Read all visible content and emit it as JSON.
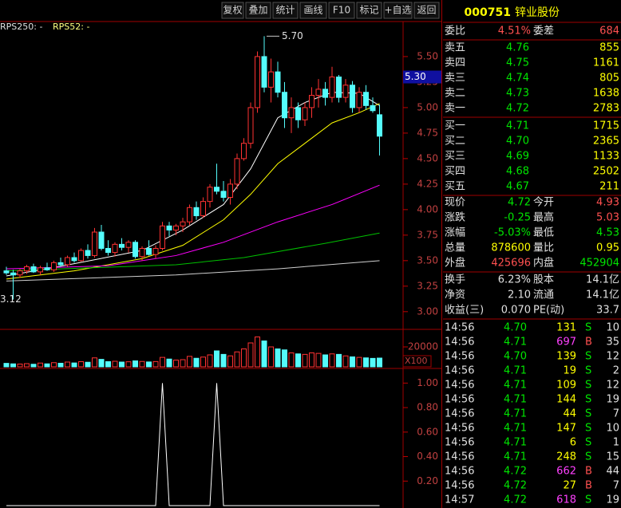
{
  "toolbar": [
    "复权",
    "叠加",
    "统计",
    "画线",
    "F10",
    "标记",
    "+自选",
    "返回"
  ],
  "chart": {
    "legend": [
      "RPS250: -",
      "RPS52: -"
    ],
    "up_color": "#ff3232",
    "down_color": "#54fcfc",
    "ylim": [
      2.85,
      5.82
    ],
    "yticks": [
      {
        "value": 5.5,
        "label": "5.50"
      },
      {
        "value": 5.25,
        "label": "5.25"
      },
      {
        "value": 5,
        "label": "5.00"
      },
      {
        "value": 4.75,
        "label": "4.75"
      },
      {
        "value": 4.5,
        "label": "4.50"
      },
      {
        "value": 4.25,
        "label": "4.25"
      },
      {
        "value": 4,
        "label": "4.00"
      },
      {
        "value": 3.75,
        "label": "3.75"
      },
      {
        "value": 3.5,
        "label": "3.50"
      },
      {
        "value": 3.25,
        "label": "3.25"
      },
      {
        "value": 3,
        "label": "3.00"
      }
    ],
    "high_label": {
      "value": 5.7,
      "label": "5.70"
    },
    "low_label": {
      "value": 3.12,
      "label": "3.12"
    },
    "price_tag": {
      "value": 5.3,
      "label": "5.30"
    },
    "candles": [
      [
        3.4,
        3.44,
        3.36,
        3.38
      ],
      [
        3.38,
        3.41,
        3.12,
        3.36
      ],
      [
        3.36,
        3.42,
        3.33,
        3.4
      ],
      [
        3.4,
        3.46,
        3.37,
        3.44
      ],
      [
        3.44,
        3.47,
        3.38,
        3.39
      ],
      [
        3.39,
        3.45,
        3.36,
        3.43
      ],
      [
        3.43,
        3.48,
        3.4,
        3.41
      ],
      [
        3.41,
        3.5,
        3.39,
        3.48
      ],
      [
        3.48,
        3.53,
        3.44,
        3.46
      ],
      [
        3.46,
        3.55,
        3.44,
        3.53
      ],
      [
        3.53,
        3.58,
        3.48,
        3.5
      ],
      [
        3.5,
        3.62,
        3.49,
        3.6
      ],
      [
        3.6,
        3.66,
        3.52,
        3.55
      ],
      [
        3.55,
        3.82,
        3.53,
        3.78
      ],
      [
        3.78,
        3.85,
        3.6,
        3.62
      ],
      [
        3.62,
        3.7,
        3.55,
        3.58
      ],
      [
        3.58,
        3.68,
        3.54,
        3.66
      ],
      [
        3.66,
        3.72,
        3.6,
        3.63
      ],
      [
        3.63,
        3.7,
        3.58,
        3.68
      ],
      [
        3.68,
        3.7,
        3.52,
        3.54
      ],
      [
        3.54,
        3.64,
        3.5,
        3.62
      ],
      [
        3.62,
        3.7,
        3.55,
        3.56
      ],
      [
        3.56,
        3.65,
        3.52,
        3.62
      ],
      [
        3.62,
        3.88,
        3.6,
        3.84
      ],
      [
        3.84,
        3.88,
        3.74,
        3.8
      ],
      [
        3.8,
        3.86,
        3.75,
        3.84
      ],
      [
        3.84,
        3.92,
        3.78,
        3.88
      ],
      [
        3.88,
        4.05,
        3.85,
        4.02
      ],
      [
        4.02,
        4.08,
        3.9,
        3.94
      ],
      [
        3.94,
        4.12,
        3.92,
        4.08
      ],
      [
        4.08,
        4.25,
        4.02,
        4.22
      ],
      [
        4.22,
        4.45,
        4.15,
        4.18
      ],
      [
        4.18,
        4.28,
        4.08,
        4.12
      ],
      [
        4.12,
        4.3,
        4.05,
        4.25
      ],
      [
        4.25,
        4.55,
        4.2,
        4.5
      ],
      [
        4.5,
        4.7,
        4.48,
        4.65
      ],
      [
        4.65,
        5.05,
        4.6,
        5.0
      ],
      [
        5.0,
        5.55,
        4.95,
        5.5
      ],
      [
        5.5,
        5.7,
        5.15,
        5.2
      ],
      [
        5.2,
        5.48,
        5.05,
        5.35
      ],
      [
        5.35,
        5.45,
        5.1,
        5.15
      ],
      [
        5.15,
        5.25,
        4.8,
        4.9
      ],
      [
        4.9,
        5.1,
        4.75,
        5.0
      ],
      [
        5.0,
        5.05,
        4.8,
        4.88
      ],
      [
        4.88,
        5.05,
        4.82,
        5.0
      ],
      [
        5.0,
        5.2,
        4.9,
        5.12
      ],
      [
        5.12,
        5.28,
        5.0,
        5.18
      ],
      [
        5.18,
        5.25,
        5.02,
        5.1
      ],
      [
        5.1,
        5.4,
        5.05,
        5.3
      ],
      [
        5.3,
        5.32,
        5.05,
        5.1
      ],
      [
        5.1,
        5.28,
        5.05,
        5.22
      ],
      [
        5.22,
        5.26,
        4.95,
        5.0
      ],
      [
        5.0,
        5.2,
        4.95,
        5.15
      ],
      [
        5.15,
        5.22,
        4.98,
        5.02
      ],
      [
        5.02,
        5.1,
        4.95,
        4.97
      ],
      [
        4.93,
        5.03,
        4.53,
        4.72
      ]
    ],
    "ma_lines": [
      {
        "color": "#ffffff",
        "x": [
          0,
          10,
          20,
          26,
          32,
          36,
          40,
          44,
          48,
          52,
          55
        ],
        "values": [
          3.35,
          3.47,
          3.6,
          3.8,
          4.05,
          4.4,
          4.9,
          5.05,
          5.15,
          5.14,
          5.02
        ]
      },
      {
        "color": "#ffff00",
        "x": [
          0,
          10,
          20,
          26,
          32,
          36,
          40,
          44,
          48,
          52,
          55
        ],
        "values": [
          3.32,
          3.4,
          3.52,
          3.65,
          3.9,
          4.15,
          4.45,
          4.65,
          4.85,
          4.95,
          5.04
        ]
      },
      {
        "color": "#ff00ff",
        "x": [
          0,
          15,
          25,
          32,
          40,
          48,
          55
        ],
        "values": [
          3.42,
          3.45,
          3.55,
          3.68,
          3.88,
          4.05,
          4.24
        ]
      },
      {
        "color": "#00c000",
        "x": [
          0,
          25,
          35,
          47,
          55
        ],
        "values": [
          3.4,
          3.46,
          3.53,
          3.67,
          3.77
        ]
      },
      {
        "color": "#d0d0d0",
        "x": [
          0,
          25,
          40,
          55
        ],
        "values": [
          3.3,
          3.36,
          3.42,
          3.5
        ]
      }
    ],
    "volume": {
      "ylim": [
        0,
        32000
      ],
      "yticks": [
        20000
      ],
      "unit": "X100",
      "values": [
        3500,
        3000,
        2800,
        3200,
        2600,
        3800,
        3000,
        4200,
        3600,
        4800,
        3900,
        5200,
        4600,
        9000,
        7500,
        5200,
        5600,
        4800,
        5100,
        6000,
        5400,
        4900,
        5300,
        9500,
        7800,
        6800,
        7200,
        10500,
        8600,
        9800,
        12000,
        16000,
        12500,
        11000,
        15000,
        18000,
        24000,
        30000,
        26000,
        20000,
        18000,
        17000,
        14000,
        13000,
        12500,
        14000,
        13500,
        12000,
        13000,
        12500,
        11000,
        10000,
        9500,
        9000,
        8500,
        8786
      ]
    },
    "rps": {
      "ylim": [
        0,
        1.1
      ],
      "yticks": [
        {
          "value": 1,
          "label": "1.00"
        },
        {
          "value": 0.8,
          "label": "0.80"
        },
        {
          "value": 0.6,
          "label": "0.60"
        },
        {
          "value": 0.4,
          "label": "0.40"
        },
        {
          "value": 0.2,
          "label": "0.20"
        }
      ],
      "values": [
        0,
        0,
        0,
        0,
        0,
        0,
        0,
        0,
        0,
        0,
        0,
        0,
        0,
        0,
        0,
        0,
        0,
        0,
        0,
        0,
        0,
        0,
        0,
        1,
        0,
        0,
        0,
        0,
        0,
        0,
        0,
        1,
        0,
        0,
        0,
        0,
        0,
        0,
        0,
        0,
        0,
        0,
        0,
        0,
        0,
        0,
        0,
        0,
        0,
        0,
        0,
        0,
        0,
        0,
        0,
        0
      ]
    }
  },
  "quote": {
    "code": "000751",
    "name": "锌业股份",
    "ratio": [
      "委比",
      "4.51%",
      "委差",
      "684"
    ],
    "book": [
      [
        "卖五",
        "4.76",
        "855"
      ],
      [
        "卖四",
        "4.75",
        "1161"
      ],
      [
        "卖三",
        "4.74",
        "805"
      ],
      [
        "卖二",
        "4.73",
        "1638"
      ],
      [
        "卖一",
        "4.72",
        "2783"
      ],
      [
        "买一",
        "4.71",
        "1715"
      ],
      [
        "买二",
        "4.70",
        "2365"
      ],
      [
        "买三",
        "4.69",
        "1133"
      ],
      [
        "买四",
        "4.68",
        "2502"
      ],
      [
        "买五",
        "4.67",
        "211"
      ]
    ],
    "stats": [
      [
        "现价",
        "4.72",
        "今开",
        "4.93"
      ],
      [
        "涨跌",
        "-0.25",
        "最高",
        "5.03"
      ],
      [
        "涨幅",
        "-5.03%",
        "最低",
        "4.53"
      ],
      [
        "总量",
        "878600",
        "量比",
        "0.95"
      ],
      [
        "外盘",
        "425696",
        "内盘",
        "452904"
      ]
    ],
    "info": [
      [
        "换手",
        "6.23%",
        "股本",
        "14.1亿"
      ],
      [
        "净资",
        "2.10",
        "流通",
        "14.1亿"
      ],
      [
        "收益(三)",
        "0.070",
        "PE(动)",
        "33.7"
      ]
    ],
    "ticks": [
      [
        "14:56",
        "4.70",
        "131",
        "S",
        "10"
      ],
      [
        "14:56",
        "4.71",
        "697",
        "B",
        "35"
      ],
      [
        "14:56",
        "4.70",
        "139",
        "S",
        "12"
      ],
      [
        "14:56",
        "4.71",
        "19",
        "S",
        "2"
      ],
      [
        "14:56",
        "4.71",
        "109",
        "S",
        "12"
      ],
      [
        "14:56",
        "4.71",
        "144",
        "S",
        "19"
      ],
      [
        "14:56",
        "4.71",
        "44",
        "S",
        "7"
      ],
      [
        "14:56",
        "4.71",
        "147",
        "S",
        "10"
      ],
      [
        "14:56",
        "4.71",
        "6",
        "S",
        "1"
      ],
      [
        "14:56",
        "4.71",
        "248",
        "S",
        "15"
      ],
      [
        "14:56",
        "4.72",
        "662",
        "B",
        "44"
      ],
      [
        "14:56",
        "4.72",
        "27",
        "B",
        "7"
      ],
      [
        "14:57",
        "4.72",
        "618",
        "S",
        "19"
      ]
    ]
  }
}
